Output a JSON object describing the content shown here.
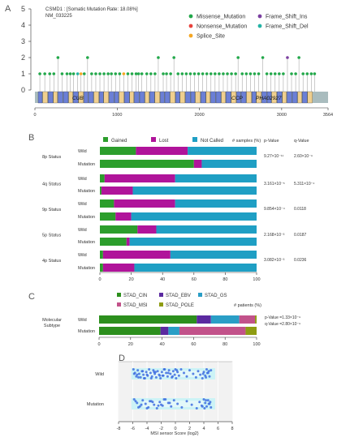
{
  "colors": {
    "missense": "#22a84a",
    "nonsense": "#e8423c",
    "splice": "#f5a623",
    "frameshift_ins": "#7b3fa0",
    "frameshift_del": "#23b3a5",
    "exon_blue": "#6b7fd6",
    "exon_tan": "#f0cf8e",
    "gained": "#2c9e2c",
    "lost": "#b0149a",
    "not_called": "#1f9fc4",
    "cin": "#2c8f1d",
    "ebv": "#5b2aa0",
    "gs": "#2a9ec6",
    "msi": "#c2528a",
    "pole": "#8e9c12",
    "msi_band": "#ccf3f6",
    "msi_dot": "#3f6fe0"
  },
  "panels": {
    "a": "A",
    "b": "B",
    "c": "C",
    "d": "D"
  },
  "chart_data": [
    {
      "type": "scatter",
      "panel": "A",
      "gene_title": "CSMD1 : [Somatic Mutation Rate: 18.08%]",
      "transcript": "NM_033225",
      "yticks": [
        "0",
        "1",
        "2",
        "3",
        "4",
        "5"
      ],
      "ylim": [
        0,
        5
      ],
      "xticks": [
        "0",
        "1000",
        "2000",
        "3000",
        "3564"
      ],
      "xlim": [
        0,
        3564
      ],
      "legend": [
        "Missense_Mutation",
        "Nonsense_Mutation",
        "Splice_Site",
        "Frame_Shift_Ins",
        "Frame_Shift_Del"
      ],
      "domain_labels": [
        "CUB",
        "CCP",
        "PHA02927"
      ],
      "mutations": [
        {
          "pos": 60,
          "count": 1,
          "type": "missense"
        },
        {
          "pos": 120,
          "count": 1,
          "type": "missense"
        },
        {
          "pos": 180,
          "count": 1,
          "type": "missense"
        },
        {
          "pos": 230,
          "count": 1,
          "type": "missense"
        },
        {
          "pos": 280,
          "count": 2,
          "type": "missense"
        },
        {
          "pos": 330,
          "count": 1,
          "type": "missense"
        },
        {
          "pos": 390,
          "count": 1,
          "type": "missense"
        },
        {
          "pos": 430,
          "count": 1,
          "type": "missense"
        },
        {
          "pos": 470,
          "count": 1,
          "type": "missense"
        },
        {
          "pos": 520,
          "count": 1,
          "type": "frameshift_del"
        },
        {
          "pos": 560,
          "count": 1,
          "type": "splice"
        },
        {
          "pos": 600,
          "count": 1,
          "type": "missense"
        },
        {
          "pos": 640,
          "count": 2,
          "type": "missense"
        },
        {
          "pos": 690,
          "count": 1,
          "type": "missense"
        },
        {
          "pos": 740,
          "count": 1,
          "type": "missense"
        },
        {
          "pos": 790,
          "count": 1,
          "type": "missense"
        },
        {
          "pos": 840,
          "count": 1,
          "type": "missense"
        },
        {
          "pos": 890,
          "count": 1,
          "type": "missense"
        },
        {
          "pos": 930,
          "count": 1,
          "type": "missense"
        },
        {
          "pos": 980,
          "count": 1,
          "type": "missense"
        },
        {
          "pos": 1030,
          "count": 1,
          "type": "missense"
        },
        {
          "pos": 1080,
          "count": 1,
          "type": "splice"
        },
        {
          "pos": 1130,
          "count": 1,
          "type": "missense"
        },
        {
          "pos": 1180,
          "count": 1,
          "type": "missense"
        },
        {
          "pos": 1230,
          "count": 1,
          "type": "missense"
        },
        {
          "pos": 1260,
          "count": 1,
          "type": "missense"
        },
        {
          "pos": 1300,
          "count": 1,
          "type": "missense"
        },
        {
          "pos": 1360,
          "count": 1,
          "type": "missense"
        },
        {
          "pos": 1410,
          "count": 1,
          "type": "missense"
        },
        {
          "pos": 1460,
          "count": 1,
          "type": "missense"
        },
        {
          "pos": 1500,
          "count": 2,
          "type": "missense"
        },
        {
          "pos": 1560,
          "count": 1,
          "type": "missense"
        },
        {
          "pos": 1600,
          "count": 1,
          "type": "missense"
        },
        {
          "pos": 1650,
          "count": 1,
          "type": "missense"
        },
        {
          "pos": 1690,
          "count": 2,
          "type": "missense"
        },
        {
          "pos": 1740,
          "count": 1,
          "type": "missense"
        },
        {
          "pos": 1790,
          "count": 1,
          "type": "missense"
        },
        {
          "pos": 1840,
          "count": 1,
          "type": "missense"
        },
        {
          "pos": 1890,
          "count": 1,
          "type": "missense"
        },
        {
          "pos": 1940,
          "count": 1,
          "type": "missense"
        },
        {
          "pos": 1990,
          "count": 1,
          "type": "missense"
        },
        {
          "pos": 2040,
          "count": 1,
          "type": "missense"
        },
        {
          "pos": 2090,
          "count": 1,
          "type": "missense"
        },
        {
          "pos": 2140,
          "count": 1,
          "type": "missense"
        },
        {
          "pos": 2190,
          "count": 1,
          "type": "missense"
        },
        {
          "pos": 2240,
          "count": 1,
          "type": "missense"
        },
        {
          "pos": 2290,
          "count": 1,
          "type": "missense"
        },
        {
          "pos": 2340,
          "count": 1,
          "type": "missense"
        },
        {
          "pos": 2390,
          "count": 1,
          "type": "missense"
        },
        {
          "pos": 2440,
          "count": 1,
          "type": "missense"
        },
        {
          "pos": 2470,
          "count": 2,
          "type": "missense"
        },
        {
          "pos": 2520,
          "count": 1,
          "type": "missense"
        },
        {
          "pos": 2570,
          "count": 1,
          "type": "missense"
        },
        {
          "pos": 2620,
          "count": 1,
          "type": "missense"
        },
        {
          "pos": 2670,
          "count": 1,
          "type": "missense"
        },
        {
          "pos": 2720,
          "count": 1,
          "type": "missense"
        },
        {
          "pos": 2770,
          "count": 2,
          "type": "missense"
        },
        {
          "pos": 2820,
          "count": 1,
          "type": "missense"
        },
        {
          "pos": 2870,
          "count": 1,
          "type": "missense"
        },
        {
          "pos": 2920,
          "count": 1,
          "type": "missense"
        },
        {
          "pos": 2970,
          "count": 1,
          "type": "missense"
        },
        {
          "pos": 3020,
          "count": 1,
          "type": "missense"
        },
        {
          "pos": 3070,
          "count": 2,
          "type": "frameshift_ins"
        },
        {
          "pos": 3120,
          "count": 1,
          "type": "missense"
        },
        {
          "pos": 3170,
          "count": 1,
          "type": "missense"
        },
        {
          "pos": 3210,
          "count": 2,
          "type": "missense"
        },
        {
          "pos": 3260,
          "count": 1,
          "type": "missense"
        },
        {
          "pos": 3310,
          "count": 1,
          "type": "missense"
        },
        {
          "pos": 3360,
          "count": 1,
          "type": "missense"
        },
        {
          "pos": 3400,
          "count": 1,
          "type": "missense"
        }
      ]
    },
    {
      "type": "bar",
      "panel": "B",
      "legend": [
        "Gained",
        "Lost",
        "Not Called"
      ],
      "xlabel": "# samples (%)",
      "xticks": [
        "0",
        "20",
        "40",
        "60",
        "80",
        "100"
      ],
      "xlim": [
        0,
        100
      ],
      "col_headers": [
        "p-Value",
        "q-Value"
      ],
      "groups": [
        {
          "label": "8p Status",
          "pvalue": "9.27×10⁻¹¹",
          "qvalue": "2.60×10⁻⁹",
          "rows": [
            {
              "label": "Wild",
              "gained": 23,
              "lost": 33,
              "not_called": 44
            },
            {
              "label": "Mutation",
              "gained": 60,
              "lost": 5,
              "not_called": 35
            }
          ]
        },
        {
          "label": "4q Status",
          "pvalue": "3.161×10⁻⁵",
          "qvalue": "5.311×10⁻⁴",
          "rows": [
            {
              "label": "Wild",
              "gained": 3,
              "lost": 45,
              "not_called": 52
            },
            {
              "label": "Mutation",
              "gained": 1,
              "lost": 20,
              "not_called": 79
            }
          ]
        },
        {
          "label": "9p Status",
          "pvalue": "9.854×10⁻⁴",
          "qvalue": "0.0118",
          "rows": [
            {
              "label": "Wild",
              "gained": 9,
              "lost": 39,
              "not_called": 52
            },
            {
              "label": "Mutation",
              "gained": 10,
              "lost": 10,
              "not_called": 80
            }
          ]
        },
        {
          "label": "5p Status",
          "pvalue": "2.168×10⁻³",
          "qvalue": "0.0187",
          "rows": [
            {
              "label": "Wild",
              "gained": 24,
              "lost": 12,
              "not_called": 64
            },
            {
              "label": "Mutation",
              "gained": 17,
              "lost": 2,
              "not_called": 81
            }
          ]
        },
        {
          "label": "4p Status",
          "pvalue": "3.082×10⁻³",
          "qvalue": "0.0236",
          "rows": [
            {
              "label": "Wild",
              "gained": 2,
              "lost": 43,
              "not_called": 55
            },
            {
              "label": "Mutation",
              "gained": 2,
              "lost": 20,
              "not_called": 78
            }
          ]
        }
      ]
    },
    {
      "type": "bar",
      "panel": "C",
      "legend": [
        "STAD_CIN",
        "STAD_EBV",
        "STAD_GS",
        "STAD_MSI",
        "STAD_POLE"
      ],
      "xlabel": "# patients (%)",
      "xticks": [
        "0",
        "20",
        "40",
        "60",
        "80",
        "100"
      ],
      "xlim": [
        0,
        100
      ],
      "group_label": "Molecular Subtype",
      "stats": [
        "p-Value =1.33×10⁻⁹",
        "q-Value =2.80×10⁻⁹"
      ],
      "rows": [
        {
          "label": "Wild",
          "values": [
            62,
            9,
            18,
            10,
            1
          ]
        },
        {
          "label": "Mutation",
          "values": [
            39,
            5,
            7,
            42,
            7
          ]
        }
      ]
    },
    {
      "type": "scatter",
      "panel": "D",
      "xlabel": "MSI sensor Score (log2)",
      "xticks": [
        "-8",
        "-6",
        "-4",
        "-2",
        "0",
        "2",
        "4",
        "6",
        "8"
      ],
      "xlim": [
        -8,
        8
      ],
      "groups": [
        {
          "label": "Wild",
          "values": [
            -5.9,
            -5.7,
            -5.5,
            -5.3,
            -5.1,
            -4.9,
            -4.7,
            -4.5,
            -4.3,
            -4.1,
            -3.9,
            -3.7,
            -3.5,
            -3.3,
            -3.1,
            -2.9,
            -2.7,
            -2.5,
            -2.3,
            -2.1,
            -1.9,
            -1.7,
            -1.5,
            -1.3,
            -1.1,
            -0.9,
            -0.7,
            -0.5,
            -0.3,
            -0.1,
            0.1,
            0.3,
            0.5,
            0.8,
            1.2,
            1.6,
            2.0,
            2.5,
            2.9,
            3.2,
            3.5,
            3.8,
            4.0,
            4.2,
            4.4,
            4.6,
            4.8,
            5.0,
            -5.8,
            -5.2,
            -4.6,
            -4.0,
            -3.4,
            -2.8,
            -2.2,
            -1.6,
            -1.0,
            -0.4,
            0.2,
            3.9,
            4.3,
            4.7,
            -5.4,
            -4.4,
            -3.0,
            -1.8,
            0.0,
            4.5
          ]
        },
        {
          "label": "Mutation",
          "values": [
            -5.8,
            -5.4,
            -5.0,
            -4.6,
            -4.2,
            -3.8,
            -3.4,
            -3.0,
            -2.6,
            -2.2,
            -1.8,
            -1.4,
            -1.0,
            -0.6,
            -0.2,
            0.3,
            0.9,
            1.6,
            2.3,
            3.0,
            3.4,
            3.7,
            4.0,
            4.2,
            4.4,
            4.6,
            4.8,
            5.0,
            -5.6,
            -4.8,
            -4.0,
            -3.2,
            -2.4,
            -1.6,
            -0.8,
            3.8,
            4.3,
            4.7,
            -5.2,
            -3.6,
            -2.0,
            4.1,
            4.9
          ]
        }
      ]
    }
  ]
}
